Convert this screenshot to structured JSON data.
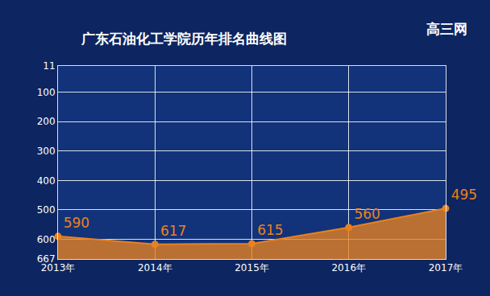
{
  "chart_data": {
    "type": "line",
    "title": "广东石油化工学院历年排名曲线图",
    "annotations": [
      "高三网"
    ],
    "categories": [
      "2013年",
      "2014年",
      "2015年",
      "2016年",
      "2017年"
    ],
    "values": [
      590,
      617,
      615,
      560,
      495
    ],
    "color": "#e8821e",
    "ylim": [
      667,
      11
    ],
    "yticks": [
      11,
      100,
      200,
      300,
      400,
      500,
      600,
      667
    ],
    "grid": true,
    "data_labels": true,
    "marker": "circle"
  }
}
